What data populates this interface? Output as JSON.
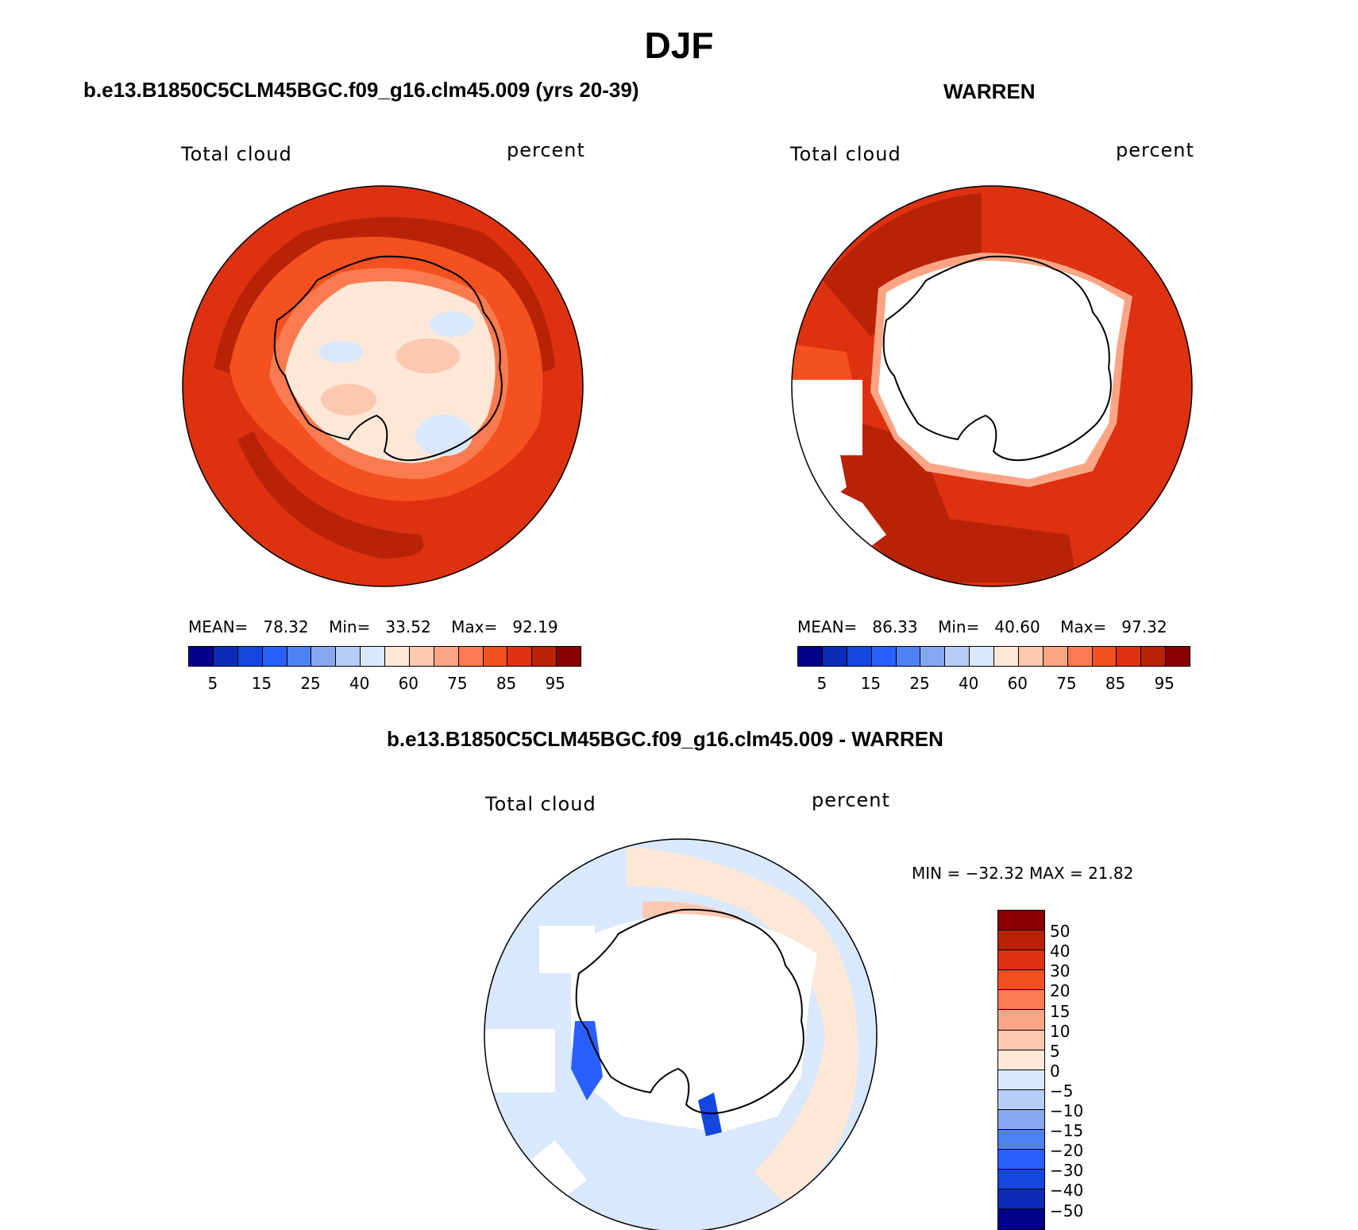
{
  "title": "DJF",
  "panel1": {
    "case_title": "b.e13.B1850C5CLM45BGC.f09_g16.clm45.009 (yrs 20-39)",
    "variable": "Total cloud",
    "units": "percent",
    "stats": {
      "mean_label": "MEAN=",
      "mean": "78.32",
      "min_label": "Min=",
      "min": "33.52",
      "max_label": "Max=",
      "max": "92.19"
    }
  },
  "panel2": {
    "case_title": "WARREN",
    "variable": "Total cloud",
    "units": "percent",
    "stats": {
      "mean_label": "MEAN=",
      "mean": "86.33",
      "min_label": "Min=",
      "min": "40.60",
      "max_label": "Max=",
      "max": "97.32"
    }
  },
  "panel3": {
    "case_title": "b.e13.B1850C5CLM45BGC.f09_g16.clm45.009 - WARREN",
    "variable": "Total cloud",
    "units": "percent",
    "minmax_text": "MIN = −32.32 MAX =   21.82"
  },
  "colorbar_top": {
    "colors": [
      "#00008b",
      "#0a2cb8",
      "#1447e0",
      "#2a5fff",
      "#4f81f3",
      "#86a8f0",
      "#b6cdf6",
      "#d9e8fb",
      "#fde8d8",
      "#fcc8b0",
      "#fba585",
      "#fa7b4f",
      "#f45020",
      "#de3110",
      "#b82308",
      "#8b0000"
    ],
    "tick_labels": [
      "5",
      "15",
      "25",
      "40",
      "60",
      "75",
      "85",
      "95"
    ]
  },
  "colorbar_diff": {
    "colors": [
      "#8b0000",
      "#b82308",
      "#de3110",
      "#f45020",
      "#fa7b4f",
      "#fba585",
      "#fcc8b0",
      "#fde8d8",
      "#d9e8fb",
      "#b6cdf6",
      "#86a8f0",
      "#4f81f3",
      "#2a5fff",
      "#1447e0",
      "#0a2cb8",
      "#00008b"
    ],
    "tick_labels": [
      "50",
      "40",
      "30",
      "20",
      "15",
      "10",
      "5",
      "0",
      "−5",
      "−10",
      "−15",
      "−20",
      "−30",
      "−40",
      "−50"
    ]
  }
}
